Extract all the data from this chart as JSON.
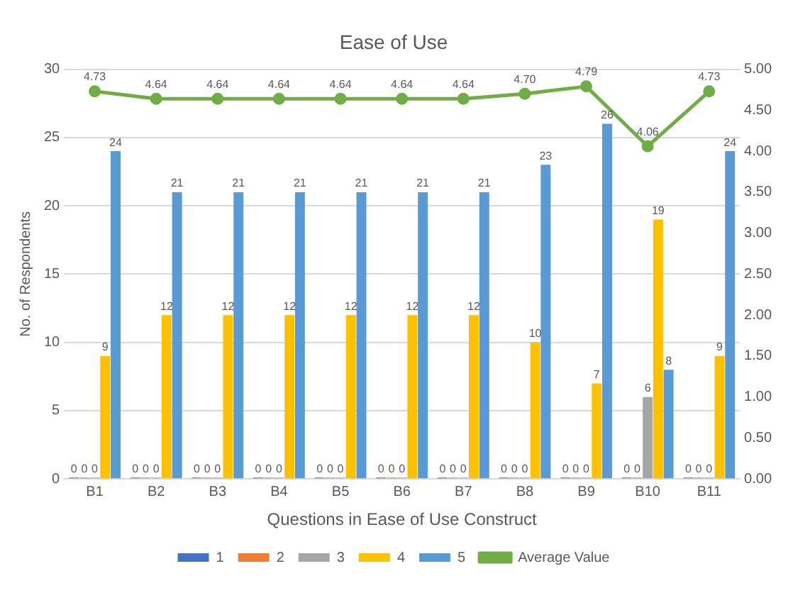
{
  "chart_data": {
    "type": "bar",
    "title": "Ease of Use",
    "xlabel": "Questions in Ease of Use Construct",
    "ylabel": "No. of Respondents",
    "categories": [
      "B1",
      "B2",
      "B3",
      "B4",
      "B5",
      "B6",
      "B7",
      "B8",
      "B9",
      "B10",
      "B11"
    ],
    "series": [
      {
        "name": "1",
        "color": "#4472c4",
        "values": [
          0,
          0,
          0,
          0,
          0,
          0,
          0,
          0,
          0,
          0,
          0
        ]
      },
      {
        "name": "2",
        "color": "#ed7d31",
        "values": [
          0,
          0,
          0,
          0,
          0,
          0,
          0,
          0,
          0,
          0,
          0
        ]
      },
      {
        "name": "3",
        "color": "#a5a5a5",
        "values": [
          0,
          0,
          0,
          0,
          0,
          0,
          0,
          0,
          0,
          6,
          0
        ]
      },
      {
        "name": "4",
        "color": "#ffc000",
        "values": [
          9,
          12,
          12,
          12,
          12,
          12,
          12,
          10,
          7,
          19,
          9
        ]
      },
      {
        "name": "5",
        "color": "#5b9bd5",
        "values": [
          24,
          21,
          21,
          21,
          21,
          21,
          21,
          23,
          26,
          8,
          24
        ]
      },
      {
        "name": "Average Value",
        "type": "line",
        "axis": "y2",
        "color": "#70ad47",
        "values": [
          4.73,
          4.64,
          4.64,
          4.64,
          4.64,
          4.64,
          4.64,
          4.7,
          4.79,
          4.06,
          4.73
        ],
        "value_labels": [
          "4.73",
          "4.64",
          "4.64",
          "4.64",
          "4.64",
          "4.64",
          "4.64",
          "4.70",
          "4.79",
          "4.06",
          "4.73"
        ]
      }
    ],
    "ylim": [
      0,
      30
    ],
    "yticks": [
      0,
      5,
      10,
      15,
      20,
      25,
      30
    ],
    "y2lim": [
      0,
      5
    ],
    "y2ticks": [
      {
        "value": 0,
        "label": "0.00"
      },
      {
        "value": 0.5,
        "label": "0.50"
      },
      {
        "value": 1,
        "label": "1.00"
      },
      {
        "value": 1.5,
        "label": "1.50"
      },
      {
        "value": 2,
        "label": "2.00"
      },
      {
        "value": 2.5,
        "label": "2.50"
      },
      {
        "value": 3,
        "label": "3.00"
      },
      {
        "value": 3.5,
        "label": "3.50"
      },
      {
        "value": 4,
        "label": "4.00"
      },
      {
        "value": 4.5,
        "label": "4.50"
      },
      {
        "value": 5,
        "label": "5.00"
      }
    ],
    "grid": "y",
    "legend": "bottom",
    "marker": "circle",
    "line_style": "solid",
    "data_labels": true
  }
}
